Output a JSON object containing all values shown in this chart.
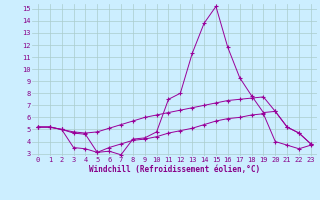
{
  "bg_color": "#cceeff",
  "line_color": "#990099",
  "grid_color": "#aacccc",
  "xlabel": "Windchill (Refroidissement éolien,°C)",
  "xlim": [
    -0.5,
    23.5
  ],
  "ylim": [
    2.8,
    15.4
  ],
  "xticks": [
    0,
    1,
    2,
    3,
    4,
    5,
    6,
    7,
    8,
    9,
    10,
    11,
    12,
    13,
    14,
    15,
    16,
    17,
    18,
    19,
    20,
    21,
    22,
    23
  ],
  "yticks": [
    3,
    4,
    5,
    6,
    7,
    8,
    9,
    10,
    11,
    12,
    13,
    14,
    15
  ],
  "line1_x": [
    0,
    1,
    2,
    3,
    4,
    5,
    6,
    7,
    8,
    9,
    10,
    11,
    12,
    13,
    14,
    15,
    16,
    17,
    18,
    19,
    20,
    21,
    22,
    23
  ],
  "line1_y": [
    5.2,
    5.2,
    5.0,
    4.7,
    4.6,
    3.1,
    3.2,
    2.9,
    4.2,
    4.3,
    4.8,
    7.5,
    8.0,
    11.3,
    13.8,
    15.2,
    11.8,
    9.3,
    7.8,
    6.4,
    6.5,
    5.2,
    4.7,
    3.8
  ],
  "line2_x": [
    0,
    1,
    2,
    3,
    4,
    5,
    6,
    7,
    8,
    9,
    10,
    11,
    12,
    13,
    14,
    15,
    16,
    17,
    18,
    19,
    20,
    21,
    22,
    23
  ],
  "line2_y": [
    5.2,
    5.2,
    5.0,
    4.8,
    4.7,
    4.8,
    5.1,
    5.4,
    5.7,
    6.0,
    6.2,
    6.4,
    6.6,
    6.8,
    7.0,
    7.2,
    7.4,
    7.5,
    7.6,
    7.7,
    6.5,
    5.2,
    4.7,
    3.8
  ],
  "line3_x": [
    0,
    1,
    2,
    3,
    4,
    5,
    6,
    7,
    8,
    9,
    10,
    11,
    12,
    13,
    14,
    15,
    16,
    17,
    18,
    19,
    20,
    21,
    22,
    23
  ],
  "line3_y": [
    5.2,
    5.2,
    5.0,
    3.5,
    3.4,
    3.1,
    3.5,
    3.8,
    4.1,
    4.2,
    4.4,
    4.7,
    4.9,
    5.1,
    5.4,
    5.7,
    5.9,
    6.0,
    6.2,
    6.3,
    4.0,
    3.7,
    3.4,
    3.7
  ],
  "xlabel_fontsize": 5.5,
  "tick_fontsize": 5.0,
  "tick_color": "#880088",
  "xlabel_color": "#880088"
}
